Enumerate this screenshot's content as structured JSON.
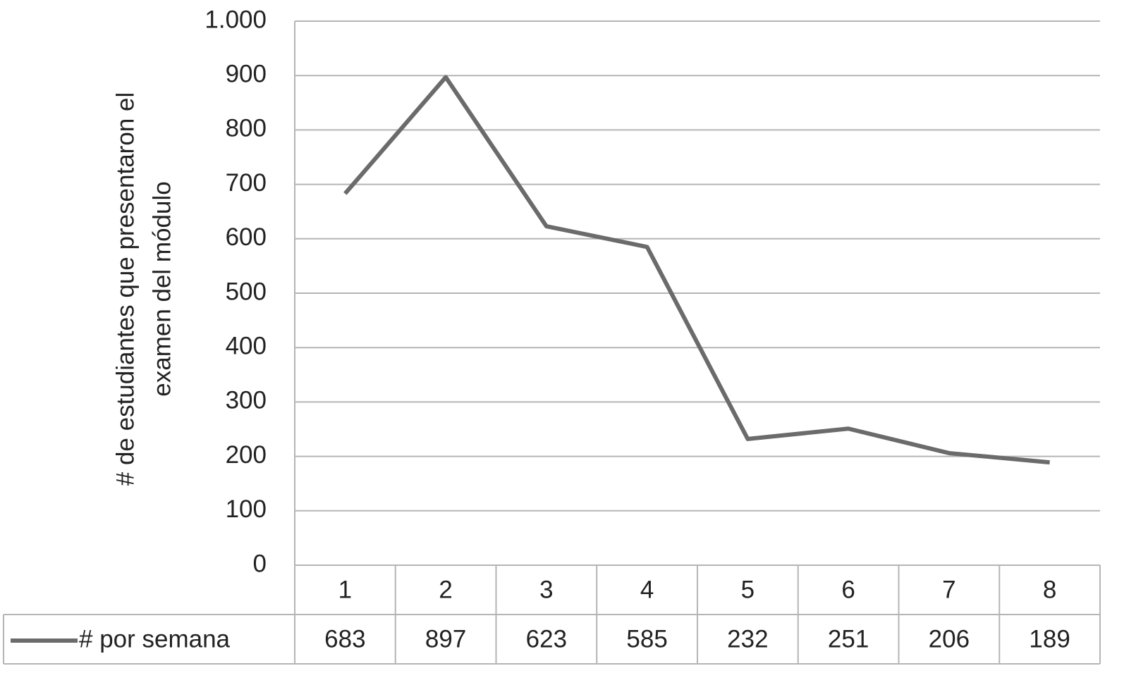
{
  "chart_data": {
    "type": "line",
    "ylabel": [
      "# de estudiantes que presentaron el",
      "examen del módulo"
    ],
    "categories": [
      "1",
      "2",
      "3",
      "4",
      "5",
      "6",
      "7",
      "8"
    ],
    "series": [
      {
        "name": "# por semana",
        "color": "#6b6b6b",
        "values": [
          683,
          897,
          623,
          585,
          232,
          251,
          206,
          189
        ]
      }
    ],
    "ylim": [
      0,
      1000
    ],
    "yticks": [
      0,
      100,
      200,
      300,
      400,
      500,
      600,
      700,
      800,
      900,
      {
        "value": 1000,
        "label": "1.000"
      }
    ],
    "grid": true,
    "data_table": true
  }
}
